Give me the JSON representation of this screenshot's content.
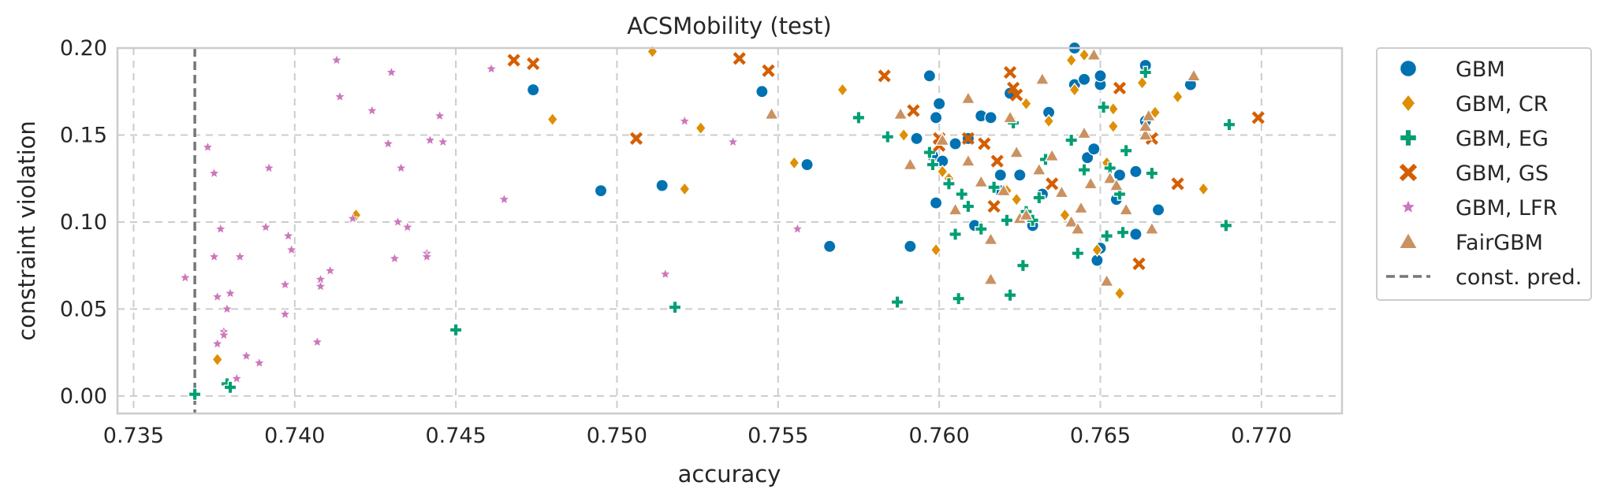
{
  "chart_data": {
    "type": "scatter",
    "title": "ACSMobility (test)",
    "xlabel": "accuracy",
    "ylabel": "constraint violation",
    "xlim": [
      0.7345,
      0.7725
    ],
    "ylim": [
      -0.01,
      0.2
    ],
    "xticks": [
      "0.735",
      "0.740",
      "0.745",
      "0.750",
      "0.755",
      "0.760",
      "0.765",
      "0.770"
    ],
    "yticks": [
      "0.00",
      "0.05",
      "0.10",
      "0.15",
      "0.20"
    ],
    "grid": true,
    "legend_position": "outside-right",
    "reference_line": {
      "name": "const. pred.",
      "x": 0.7369,
      "color": "#777777",
      "style": "dashed"
    },
    "series": [
      {
        "name": "GBM",
        "marker": "circle",
        "color": "#0072b2",
        "points": [
          [
            0.7474,
            0.176
          ],
          [
            0.7495,
            0.118
          ],
          [
            0.7514,
            0.121
          ],
          [
            0.7545,
            0.175
          ],
          [
            0.7559,
            0.133
          ],
          [
            0.7566,
            0.086
          ],
          [
            0.7591,
            0.086
          ],
          [
            0.7593,
            0.148
          ],
          [
            0.7597,
            0.184
          ],
          [
            0.7598,
            0.138
          ],
          [
            0.7599,
            0.111
          ],
          [
            0.7599,
            0.16
          ],
          [
            0.76,
            0.168
          ],
          [
            0.7601,
            0.135
          ],
          [
            0.7605,
            0.145
          ],
          [
            0.7609,
            0.148
          ],
          [
            0.7611,
            0.098
          ],
          [
            0.7613,
            0.161
          ],
          [
            0.7616,
            0.16
          ],
          [
            0.7619,
            0.127
          ],
          [
            0.7619,
            0.118
          ],
          [
            0.7622,
            0.174
          ],
          [
            0.7625,
            0.127
          ],
          [
            0.7629,
            0.098
          ],
          [
            0.7632,
            0.116
          ],
          [
            0.7634,
            0.163
          ],
          [
            0.7642,
            0.179
          ],
          [
            0.7642,
            0.2
          ],
          [
            0.7645,
            0.182
          ],
          [
            0.7646,
            0.137
          ],
          [
            0.7648,
            0.142
          ],
          [
            0.7649,
            0.078
          ],
          [
            0.765,
            0.179
          ],
          [
            0.765,
            0.184
          ],
          [
            0.765,
            0.085
          ],
          [
            0.7655,
            0.113
          ],
          [
            0.7656,
            0.127
          ],
          [
            0.7661,
            0.129
          ],
          [
            0.7661,
            0.093
          ],
          [
            0.7664,
            0.19
          ],
          [
            0.7664,
            0.158
          ],
          [
            0.7668,
            0.107
          ],
          [
            0.7678,
            0.179
          ]
        ]
      },
      {
        "name": "GBM, CR",
        "marker": "diamond",
        "color": "#de8f05",
        "points": [
          [
            0.7376,
            0.021
          ],
          [
            0.7419,
            0.104
          ],
          [
            0.748,
            0.159
          ],
          [
            0.7511,
            0.198
          ],
          [
            0.7521,
            0.119
          ],
          [
            0.7526,
            0.154
          ],
          [
            0.7555,
            0.134
          ],
          [
            0.757,
            0.176
          ],
          [
            0.7589,
            0.15
          ],
          [
            0.7599,
            0.084
          ],
          [
            0.7601,
            0.129
          ],
          [
            0.7603,
            0.125
          ],
          [
            0.7621,
            0.118
          ],
          [
            0.7624,
            0.113
          ],
          [
            0.7627,
            0.168
          ],
          [
            0.7634,
            0.158
          ],
          [
            0.7639,
            0.104
          ],
          [
            0.7641,
            0.193
          ],
          [
            0.7642,
            0.176
          ],
          [
            0.7645,
            0.196
          ],
          [
            0.7649,
            0.084
          ],
          [
            0.7652,
            0.134
          ],
          [
            0.7654,
            0.165
          ],
          [
            0.7654,
            0.155
          ],
          [
            0.7656,
            0.059
          ],
          [
            0.7663,
            0.18
          ],
          [
            0.7667,
            0.163
          ],
          [
            0.7674,
            0.172
          ],
          [
            0.7682,
            0.119
          ]
        ]
      },
      {
        "name": "GBM, EG",
        "marker": "plus",
        "color": "#029e73",
        "points": [
          [
            0.7369,
            0.001
          ],
          [
            0.7379,
            0.007
          ],
          [
            0.738,
            0.005
          ],
          [
            0.745,
            0.038
          ],
          [
            0.7518,
            0.051
          ],
          [
            0.7575,
            0.16
          ],
          [
            0.7584,
            0.149
          ],
          [
            0.7587,
            0.054
          ],
          [
            0.7597,
            0.14
          ],
          [
            0.7598,
            0.133
          ],
          [
            0.7603,
            0.122
          ],
          [
            0.7605,
            0.093
          ],
          [
            0.7606,
            0.056
          ],
          [
            0.7607,
            0.116
          ],
          [
            0.7609,
            0.109
          ],
          [
            0.7613,
            0.096
          ],
          [
            0.7617,
            0.12
          ],
          [
            0.7621,
            0.101
          ],
          [
            0.7622,
            0.058
          ],
          [
            0.7623,
            0.157
          ],
          [
            0.7626,
            0.075
          ],
          [
            0.7627,
            0.106
          ],
          [
            0.7629,
            0.101
          ],
          [
            0.7631,
            0.114
          ],
          [
            0.7633,
            0.136
          ],
          [
            0.7641,
            0.147
          ],
          [
            0.7643,
            0.082
          ],
          [
            0.7645,
            0.13
          ],
          [
            0.7651,
            0.166
          ],
          [
            0.7652,
            0.092
          ],
          [
            0.7653,
            0.131
          ],
          [
            0.7656,
            0.116
          ],
          [
            0.7657,
            0.094
          ],
          [
            0.7658,
            0.141
          ],
          [
            0.7664,
            0.186
          ],
          [
            0.7666,
            0.128
          ],
          [
            0.7689,
            0.098
          ],
          [
            0.769,
            0.156
          ]
        ]
      },
      {
        "name": "GBM, GS",
        "marker": "x",
        "color": "#d55e00",
        "points": [
          [
            0.7468,
            0.193
          ],
          [
            0.7474,
            0.191
          ],
          [
            0.7538,
            0.194
          ],
          [
            0.7547,
            0.187
          ],
          [
            0.7506,
            0.148
          ],
          [
            0.7583,
            0.184
          ],
          [
            0.7592,
            0.164
          ],
          [
            0.76,
            0.148
          ],
          [
            0.76,
            0.144
          ],
          [
            0.7609,
            0.148
          ],
          [
            0.7614,
            0.145
          ],
          [
            0.7617,
            0.109
          ],
          [
            0.7618,
            0.135
          ],
          [
            0.7622,
            0.186
          ],
          [
            0.7623,
            0.177
          ],
          [
            0.7624,
            0.173
          ],
          [
            0.7635,
            0.122
          ],
          [
            0.7656,
            0.177
          ],
          [
            0.7662,
            0.076
          ],
          [
            0.7666,
            0.148
          ],
          [
            0.7674,
            0.122
          ],
          [
            0.7699,
            0.16
          ]
        ]
      },
      {
        "name": "GBM, LFR",
        "marker": "star",
        "color": "#cc78bc",
        "points": [
          [
            0.7366,
            0.068
          ],
          [
            0.7373,
            0.143
          ],
          [
            0.7375,
            0.128
          ],
          [
            0.7375,
            0.08
          ],
          [
            0.7376,
            0.057
          ],
          [
            0.7377,
            0.096
          ],
          [
            0.7378,
            0.037
          ],
          [
            0.7378,
            0.035
          ],
          [
            0.7376,
            0.03
          ],
          [
            0.7379,
            0.05
          ],
          [
            0.738,
            0.059
          ],
          [
            0.7382,
            0.01
          ],
          [
            0.7383,
            0.08
          ],
          [
            0.7385,
            0.023
          ],
          [
            0.7389,
            0.019
          ],
          [
            0.7391,
            0.097
          ],
          [
            0.7392,
            0.131
          ],
          [
            0.7397,
            0.064
          ],
          [
            0.7397,
            0.047
          ],
          [
            0.7398,
            0.092
          ],
          [
            0.7399,
            0.084
          ],
          [
            0.7407,
            0.031
          ],
          [
            0.7408,
            0.067
          ],
          [
            0.7408,
            0.063
          ],
          [
            0.7411,
            0.072
          ],
          [
            0.7413,
            0.193
          ],
          [
            0.7414,
            0.172
          ],
          [
            0.7418,
            0.102
          ],
          [
            0.7424,
            0.164
          ],
          [
            0.7429,
            0.145
          ],
          [
            0.743,
            0.186
          ],
          [
            0.7431,
            0.079
          ],
          [
            0.7432,
            0.1
          ],
          [
            0.7433,
            0.131
          ],
          [
            0.7435,
            0.097
          ],
          [
            0.7441,
            0.082
          ],
          [
            0.7441,
            0.08
          ],
          [
            0.7442,
            0.147
          ],
          [
            0.7445,
            0.161
          ],
          [
            0.7446,
            0.146
          ],
          [
            0.7461,
            0.188
          ],
          [
            0.7465,
            0.113
          ],
          [
            0.7515,
            0.07
          ],
          [
            0.7521,
            0.158
          ],
          [
            0.7536,
            0.146
          ],
          [
            0.7556,
            0.096
          ]
        ]
      },
      {
        "name": "FairGBM",
        "marker": "triangle",
        "color": "#ca9161",
        "points": [
          [
            0.7548,
            0.162
          ],
          [
            0.7588,
            0.162
          ],
          [
            0.7591,
            0.133
          ],
          [
            0.7601,
            0.147
          ],
          [
            0.7605,
            0.107
          ],
          [
            0.7609,
            0.135
          ],
          [
            0.7609,
            0.171
          ],
          [
            0.7613,
            0.123
          ],
          [
            0.7616,
            0.09
          ],
          [
            0.7616,
            0.067
          ],
          [
            0.762,
            0.118
          ],
          [
            0.7622,
            0.16
          ],
          [
            0.7624,
            0.14
          ],
          [
            0.7625,
            0.102
          ],
          [
            0.7627,
            0.104
          ],
          [
            0.7631,
            0.13
          ],
          [
            0.7632,
            0.182
          ],
          [
            0.7635,
            0.138
          ],
          [
            0.7638,
            0.117
          ],
          [
            0.7641,
            0.1
          ],
          [
            0.7643,
            0.096
          ],
          [
            0.7644,
            0.108
          ],
          [
            0.7645,
            0.151
          ],
          [
            0.7647,
            0.122
          ],
          [
            0.7648,
            0.196
          ],
          [
            0.7652,
            0.066
          ],
          [
            0.7653,
            0.125
          ],
          [
            0.7655,
            0.121
          ],
          [
            0.7658,
            0.107
          ],
          [
            0.7664,
            0.15
          ],
          [
            0.7664,
            0.155
          ],
          [
            0.7665,
            0.161
          ],
          [
            0.7666,
            0.096
          ],
          [
            0.7679,
            0.184
          ]
        ]
      }
    ]
  }
}
